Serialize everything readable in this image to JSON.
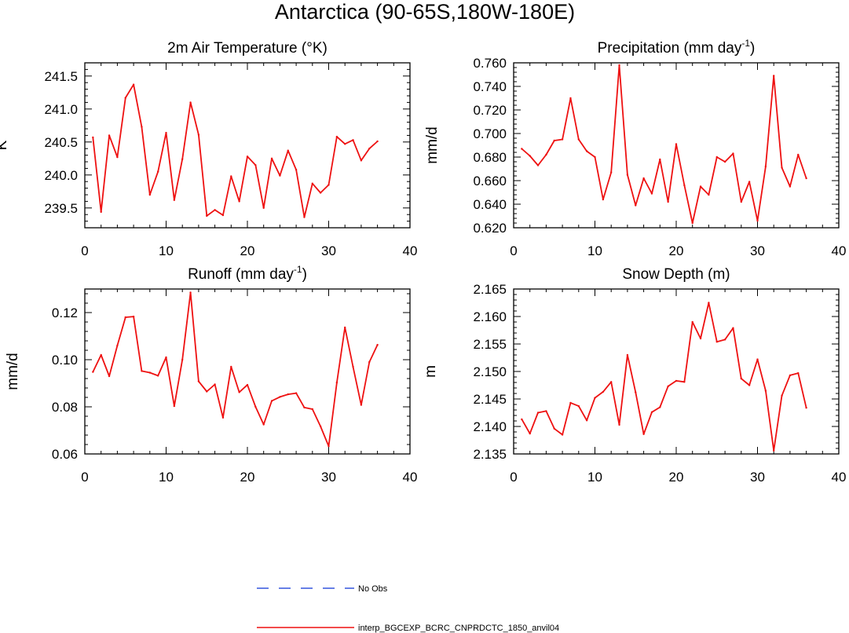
{
  "figure": {
    "title": "Antarctica (90-65S,180W-180E)",
    "legend": {
      "placement": "bottom-center",
      "entries": [
        {
          "label": "No Obs",
          "color": "#3355dd",
          "style": "dashed"
        },
        {
          "label": "interp_BGCEXP_BCRC_CNPRDCTC_1850_anvil04",
          "color": "#ee1111",
          "style": "solid"
        }
      ]
    }
  },
  "chart_data": [
    {
      "type": "line",
      "title": "2m Air Temperature",
      "title_unit": "(°K)",
      "ylabel": "K",
      "xlabel": "",
      "xlim": [
        0,
        40
      ],
      "ylim": [
        239.2,
        241.7
      ],
      "xticks": [
        0,
        10,
        20,
        30,
        40
      ],
      "xtick_labels": [
        "0",
        "10",
        "20",
        "30",
        "40"
      ],
      "yticks": [
        239.5,
        240.0,
        240.5,
        241.0,
        241.5
      ],
      "ytick_labels": [
        "239.5",
        "240.0",
        "240.5",
        "241.0",
        "241.5"
      ],
      "series": [
        {
          "name": "interp_BGCEXP_BCRC_CNPRDCTC_1850_anvil04",
          "color": "#ee1111",
          "x": [
            1,
            2,
            3,
            4,
            5,
            6,
            7,
            8,
            9,
            10,
            11,
            12,
            13,
            14,
            15,
            16,
            17,
            18,
            19,
            20,
            21,
            22,
            23,
            24,
            25,
            26,
            27,
            28,
            29,
            30,
            31,
            32,
            33,
            34,
            35,
            36
          ],
          "values": [
            240.57,
            239.44,
            240.6,
            240.27,
            241.17,
            241.37,
            240.73,
            239.7,
            240.05,
            240.64,
            239.62,
            240.24,
            241.1,
            240.61,
            239.38,
            239.47,
            239.39,
            239.98,
            239.6,
            240.28,
            240.15,
            239.5,
            240.25,
            239.99,
            240.37,
            240.08,
            239.36,
            239.87,
            239.73,
            239.85,
            240.58,
            240.47,
            240.53,
            240.22,
            240.4,
            240.51
          ]
        }
      ]
    },
    {
      "type": "line",
      "title": "Precipitation",
      "title_unit": "(mm day",
      "title_sup": "-1",
      "title_close": ")",
      "ylabel": "mm/d",
      "xlabel": "",
      "xlim": [
        0,
        40
      ],
      "ylim": [
        0.62,
        0.76
      ],
      "xticks": [
        0,
        10,
        20,
        30,
        40
      ],
      "xtick_labels": [
        "0",
        "10",
        "20",
        "30",
        "40"
      ],
      "yticks": [
        0.62,
        0.64,
        0.66,
        0.68,
        0.7,
        0.72,
        0.74,
        0.76
      ],
      "ytick_labels": [
        "0.620",
        "0.640",
        "0.660",
        "0.680",
        "0.700",
        "0.720",
        "0.740",
        "0.760"
      ],
      "series": [
        {
          "name": "interp_BGCEXP_BCRC_CNPRDCTC_1850_anvil04",
          "color": "#ee1111",
          "x": [
            1,
            2,
            3,
            4,
            5,
            6,
            7,
            8,
            9,
            10,
            11,
            12,
            13,
            14,
            15,
            16,
            17,
            18,
            19,
            20,
            21,
            22,
            23,
            24,
            25,
            26,
            27,
            28,
            29,
            30,
            31,
            32,
            33,
            34,
            35,
            36
          ],
          "values": [
            0.687,
            0.681,
            0.673,
            0.682,
            0.694,
            0.695,
            0.73,
            0.695,
            0.685,
            0.68,
            0.644,
            0.667,
            0.758,
            0.665,
            0.639,
            0.662,
            0.649,
            0.678,
            0.642,
            0.691,
            0.656,
            0.624,
            0.655,
            0.648,
            0.68,
            0.676,
            0.683,
            0.642,
            0.659,
            0.626,
            0.672,
            0.749,
            0.671,
            0.655,
            0.682,
            0.662
          ]
        }
      ]
    },
    {
      "type": "line",
      "title": "Runoff",
      "title_unit": "(mm day",
      "title_sup": "-1",
      "title_close": ")",
      "ylabel": "mm/d",
      "xlabel": "",
      "xlim": [
        0,
        40
      ],
      "ylim": [
        0.06,
        0.13
      ],
      "xticks": [
        0,
        10,
        20,
        30,
        40
      ],
      "xtick_labels": [
        "0",
        "10",
        "20",
        "30",
        "40"
      ],
      "yticks": [
        0.06,
        0.08,
        0.1,
        0.12
      ],
      "ytick_labels": [
        "0.06",
        "0.08",
        "0.10",
        "0.12"
      ],
      "series": [
        {
          "name": "interp_BGCEXP_BCRC_CNPRDCTC_1850_anvil04",
          "color": "#ee1111",
          "x": [
            1,
            2,
            3,
            4,
            5,
            6,
            7,
            8,
            9,
            10,
            11,
            12,
            13,
            14,
            15,
            16,
            17,
            18,
            19,
            20,
            21,
            22,
            23,
            24,
            25,
            26,
            27,
            28,
            29,
            30,
            31,
            32,
            33,
            34,
            35,
            36
          ],
          "values": [
            0.0948,
            0.102,
            0.093,
            0.106,
            0.118,
            0.1183,
            0.0952,
            0.0945,
            0.0932,
            0.101,
            0.0803,
            0.1,
            0.1285,
            0.0908,
            0.0865,
            0.0895,
            0.0754,
            0.097,
            0.0862,
            0.0893,
            0.08,
            0.0725,
            0.0825,
            0.0842,
            0.0853,
            0.0858,
            0.0797,
            0.079,
            0.0717,
            0.0633,
            0.0903,
            0.1137,
            0.097,
            0.0808,
            0.099,
            0.1063
          ]
        }
      ]
    },
    {
      "type": "line",
      "title": "Snow Depth",
      "title_unit": "(m)",
      "ylabel": "m",
      "xlabel": "",
      "xlim": [
        0,
        40
      ],
      "ylim": [
        2.135,
        2.165
      ],
      "xticks": [
        0,
        10,
        20,
        30,
        40
      ],
      "xtick_labels": [
        "0",
        "10",
        "20",
        "30",
        "40"
      ],
      "yticks": [
        2.135,
        2.14,
        2.145,
        2.15,
        2.155,
        2.16,
        2.165
      ],
      "ytick_labels": [
        "2.135",
        "2.140",
        "2.145",
        "2.150",
        "2.155",
        "2.160",
        "2.165"
      ],
      "series": [
        {
          "name": "interp_BGCEXP_BCRC_CNPRDCTC_1850_anvil04",
          "color": "#ee1111",
          "x": [
            1,
            2,
            3,
            4,
            5,
            6,
            7,
            8,
            9,
            10,
            11,
            12,
            13,
            14,
            15,
            16,
            17,
            18,
            19,
            20,
            21,
            22,
            23,
            24,
            25,
            26,
            27,
            28,
            29,
            30,
            31,
            32,
            33,
            34,
            35,
            36
          ],
          "values": [
            2.1413,
            2.1387,
            2.1425,
            2.1428,
            2.1396,
            2.1385,
            2.1443,
            2.1437,
            2.1411,
            2.1452,
            2.1463,
            2.1481,
            2.1403,
            2.153,
            2.1462,
            2.1386,
            2.1426,
            2.1435,
            2.1473,
            2.1483,
            2.1481,
            2.159,
            2.156,
            2.1625,
            2.1554,
            2.1558,
            2.1579,
            2.1487,
            2.1475,
            2.1522,
            2.1465,
            2.1356,
            2.1456,
            2.1493,
            2.1497,
            2.1434
          ]
        }
      ]
    }
  ]
}
